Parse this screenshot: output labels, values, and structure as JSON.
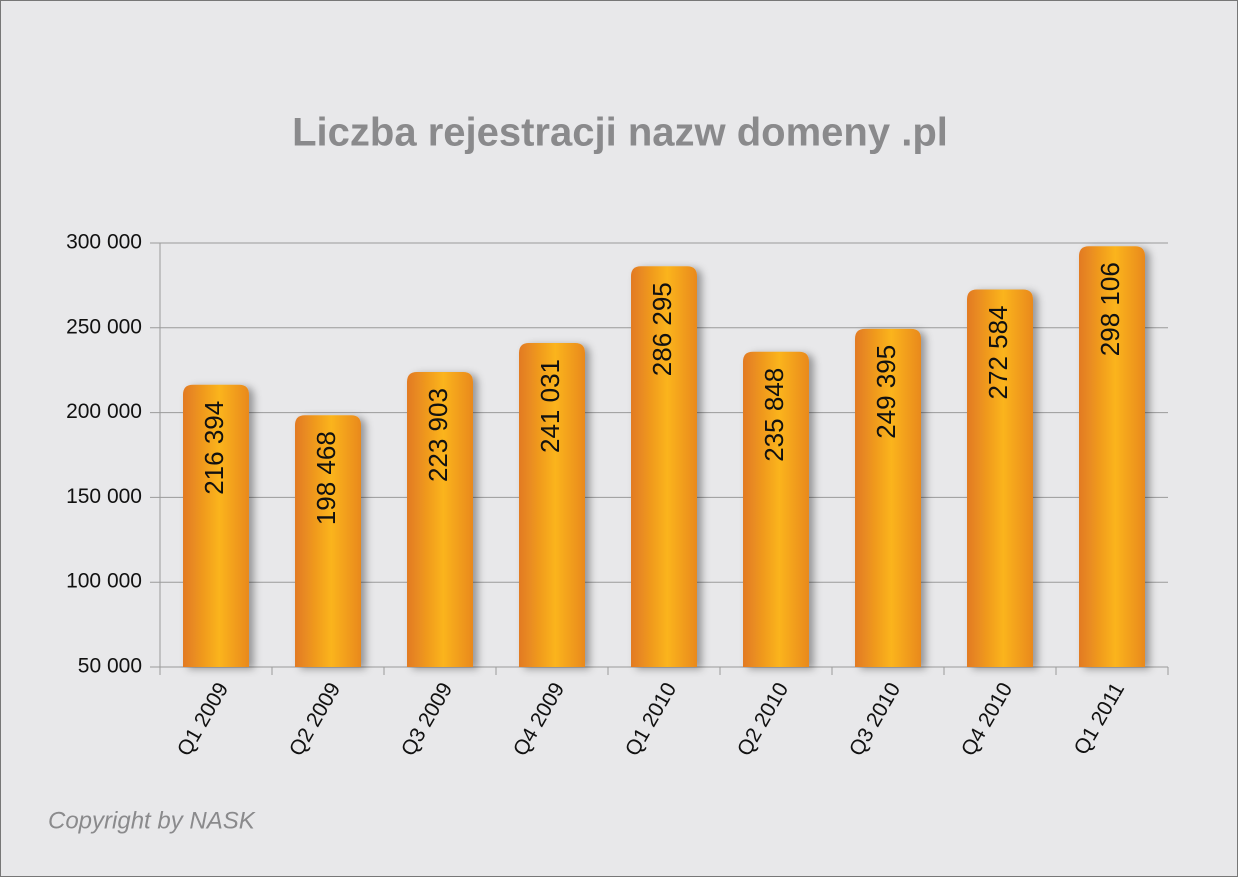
{
  "chart_data": {
    "type": "bar",
    "title": "Liczba rejestracji nazw domeny .pl",
    "categories": [
      "Q1 2009",
      "Q2 2009",
      "Q3 2009",
      "Q4 2009",
      "Q1 2010",
      "Q2 2010",
      "Q3 2010",
      "Q4 2010",
      "Q1 2011"
    ],
    "values": [
      216394,
      198468,
      223903,
      241031,
      286295,
      235848,
      249395,
      272584,
      298106
    ],
    "value_labels": [
      "216 394",
      "198 468",
      "223 903",
      "241 031",
      "286 295",
      "235 848",
      "249 395",
      "272 584",
      "298 106"
    ],
    "color": "#f5a623",
    "ylim": [
      50000,
      300000
    ],
    "yticks": [
      {
        "value": 50000,
        "label": "50 000"
      },
      {
        "value": 100000,
        "label": "100 000"
      },
      {
        "value": 150000,
        "label": "150 000"
      },
      {
        "value": 200000,
        "label": "200 000"
      },
      {
        "value": 250000,
        "label": "250 000"
      },
      {
        "value": 300000,
        "label": "300 000"
      }
    ],
    "grid": true
  },
  "footer": {
    "copyright": "Copyright by NASK"
  }
}
